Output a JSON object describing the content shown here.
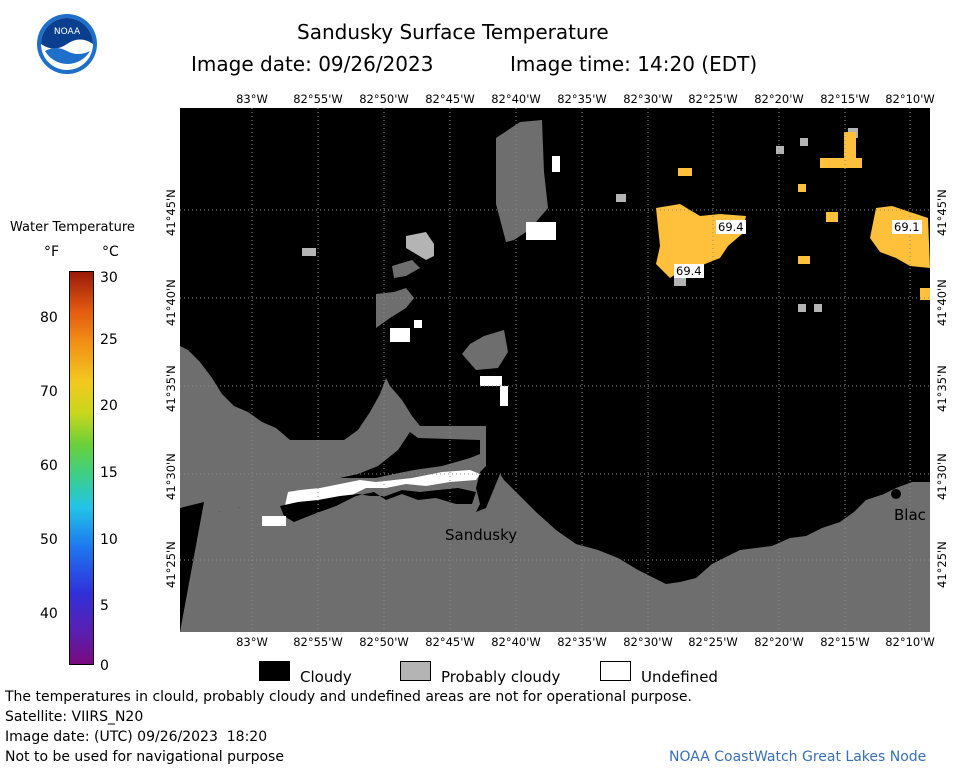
{
  "header": {
    "title": "Sandusky Surface Temperature",
    "image_date": "Image date: 09/26/2023",
    "image_time": "Image time: 14:20 (EDT)"
  },
  "logo": {
    "text": "NOAA"
  },
  "longitudes": [
    "83°W",
    "82°55'W",
    "82°50'W",
    "82°45'W",
    "82°40'W",
    "82°35'W",
    "82°30'W",
    "82°25'W",
    "82°20'W",
    "82°15'W",
    "82°10'W"
  ],
  "latitudes": [
    "41°45'N",
    "41°40'N",
    "41°35'N",
    "41°30'N",
    "41°25'N"
  ],
  "map": {
    "city_label": "Sandusky",
    "city_label_2": "Blac",
    "readings": [
      "69.4",
      "69.4",
      "69.1"
    ],
    "colors": {
      "land": "#6e6e6e",
      "cloudy": "#000000",
      "probably_cloudy": "#b4b4b4",
      "undefined": "#ffffff",
      "warm": "#ffc03c"
    }
  },
  "scale": {
    "title": "Water Temperature",
    "unit_f": "°F",
    "unit_c": "°C",
    "f_ticks": [
      "80",
      "70",
      "60",
      "50",
      "40"
    ],
    "c_ticks": [
      "30",
      "25",
      "20",
      "15",
      "10",
      "5",
      "0"
    ]
  },
  "legend": {
    "cloudy": "Cloudy",
    "probably_cloudy": "Probably cloudy",
    "undefined": "Undefined"
  },
  "footer": {
    "note": "The temperatures in clould, probably cloudy and undefined areas are not for operational purpose.",
    "satellite": "Satellite: VIIRS_N20",
    "utc_date": "Image date: (UTC) 09/26/2023  18:20",
    "nav": "Not to be used for navigational purpose",
    "node": "NOAA CoastWatch Great Lakes Node"
  }
}
